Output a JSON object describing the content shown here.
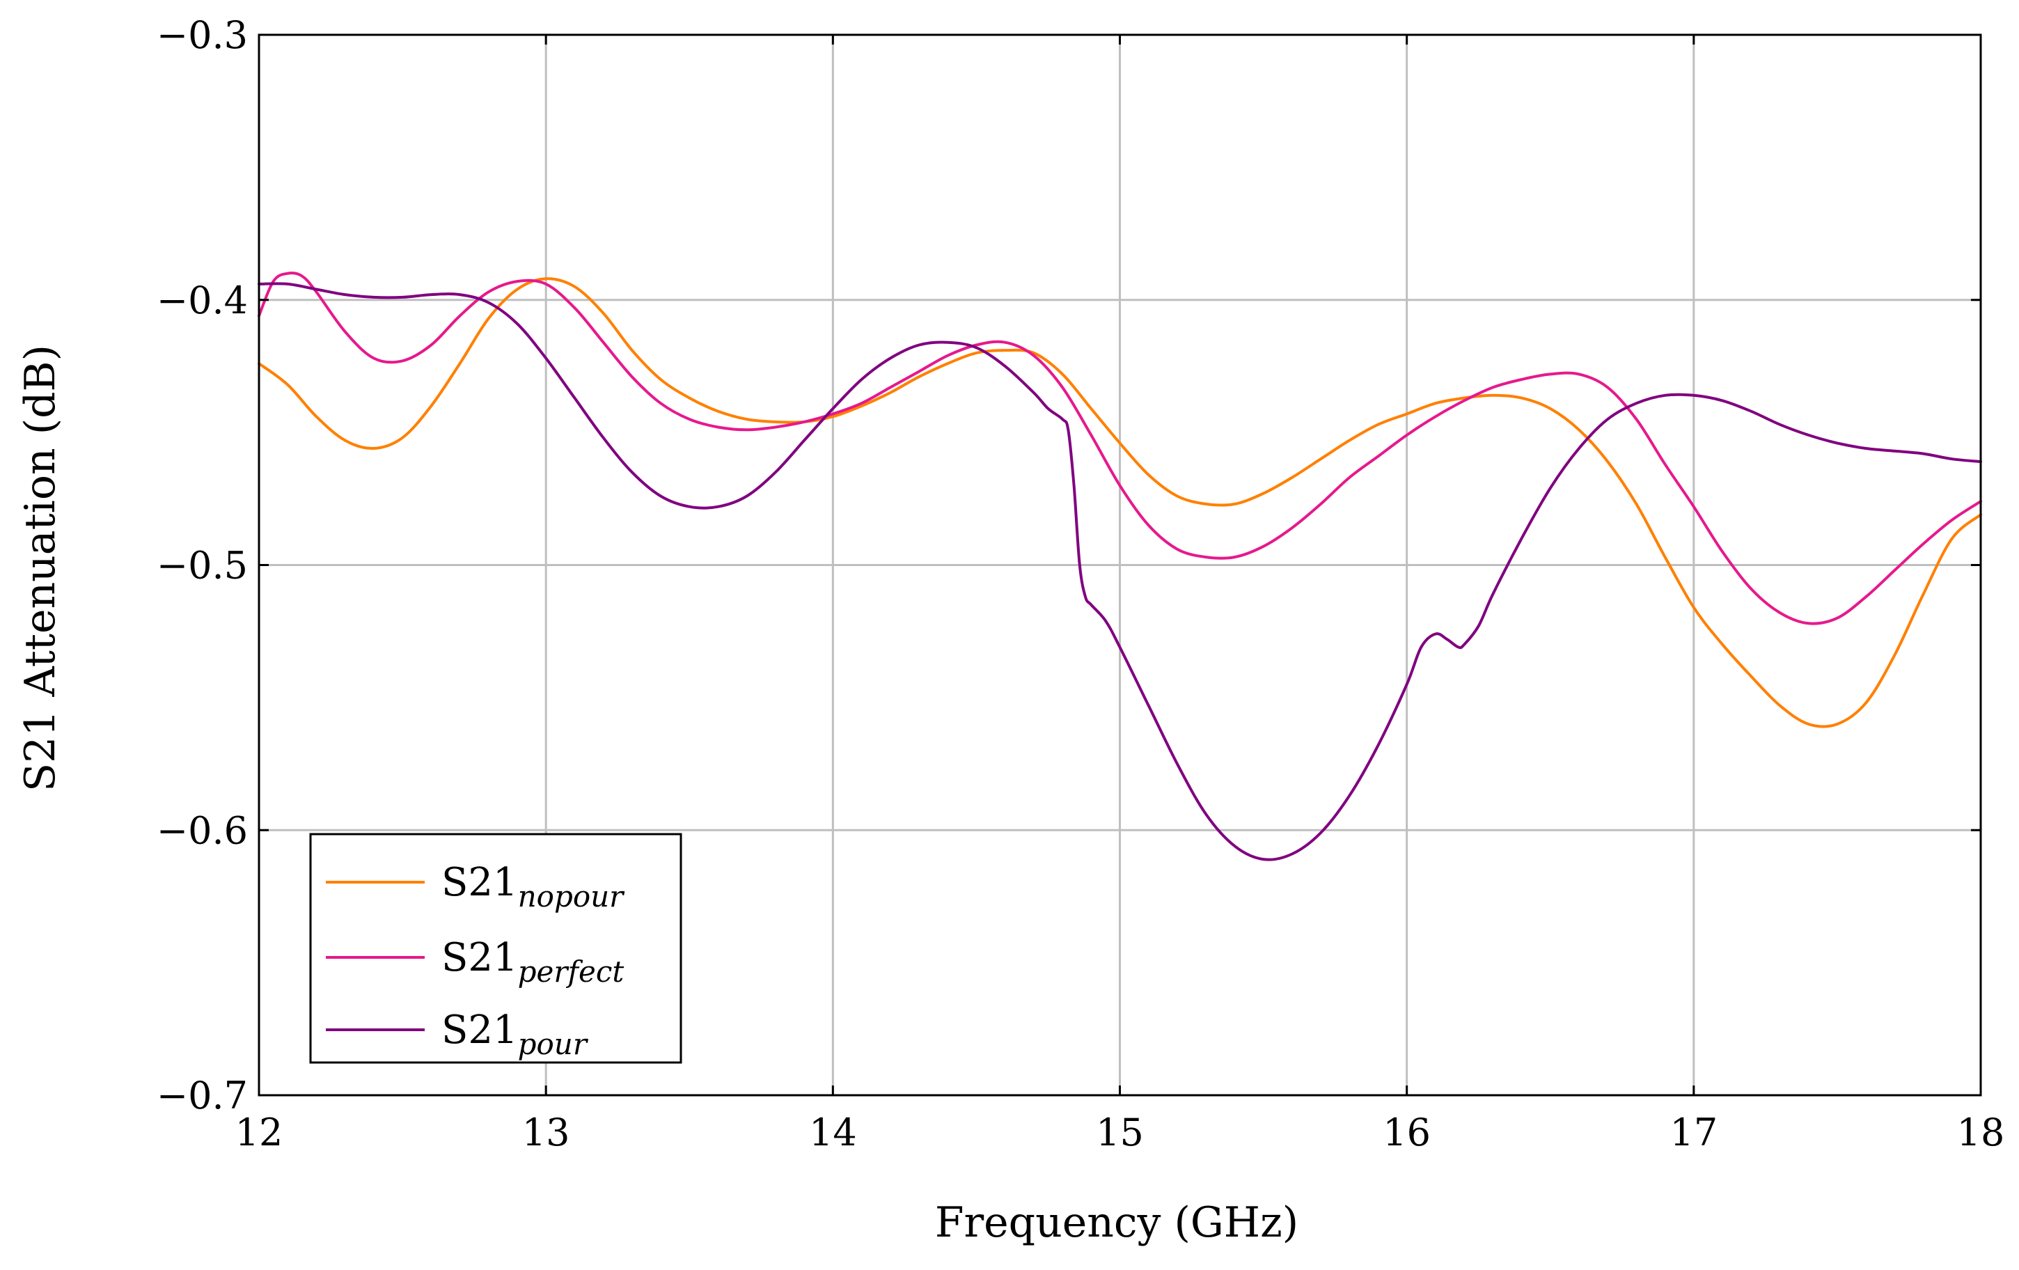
{
  "chart_data": {
    "type": "line",
    "title": "",
    "xlabel": "Frequency (GHz)",
    "ylabel": "S21 Attenuation (dB)",
    "xlim": [
      12,
      18
    ],
    "ylim": [
      -0.7,
      -0.3
    ],
    "xticks": [
      12,
      13,
      14,
      15,
      16,
      17,
      18
    ],
    "yticks": [
      -0.3,
      -0.4,
      -0.5,
      -0.6,
      -0.7
    ],
    "xtick_labels": [
      "12",
      "13",
      "14",
      "15",
      "16",
      "17",
      "18"
    ],
    "ytick_labels": [
      "−0.3",
      "−0.4",
      "−0.5",
      "−0.6",
      "−0.7"
    ],
    "grid": true,
    "legend_position": "bottom-left",
    "series": [
      {
        "name": "S21",
        "subscript": "nopour",
        "color": "#ff8000",
        "x": [
          12.0,
          12.1,
          12.2,
          12.3,
          12.4,
          12.5,
          12.6,
          12.7,
          12.8,
          12.9,
          13.0,
          13.1,
          13.2,
          13.3,
          13.4,
          13.5,
          13.6,
          13.7,
          13.8,
          13.9,
          14.0,
          14.1,
          14.2,
          14.3,
          14.4,
          14.5,
          14.6,
          14.7,
          14.8,
          14.9,
          15.0,
          15.1,
          15.2,
          15.3,
          15.4,
          15.5,
          15.6,
          15.7,
          15.8,
          15.9,
          16.0,
          16.1,
          16.2,
          16.3,
          16.4,
          16.5,
          16.6,
          16.7,
          16.8,
          16.9,
          17.0,
          17.1,
          17.2,
          17.3,
          17.4,
          17.5,
          17.6,
          17.7,
          17.8,
          17.9,
          18.0
        ],
        "y": [
          -0.424,
          -0.432,
          -0.444,
          -0.453,
          -0.456,
          -0.452,
          -0.44,
          -0.424,
          -0.407,
          -0.396,
          -0.392,
          -0.395,
          -0.405,
          -0.419,
          -0.43,
          -0.437,
          -0.442,
          -0.445,
          -0.446,
          -0.446,
          -0.444,
          -0.44,
          -0.435,
          -0.429,
          -0.424,
          -0.42,
          -0.419,
          -0.42,
          -0.428,
          -0.441,
          -0.454,
          -0.466,
          -0.474,
          -0.477,
          -0.477,
          -0.473,
          -0.467,
          -0.46,
          -0.453,
          -0.447,
          -0.443,
          -0.439,
          -0.437,
          -0.436,
          -0.437,
          -0.441,
          -0.449,
          -0.461,
          -0.477,
          -0.497,
          -0.516,
          -0.53,
          -0.542,
          -0.553,
          -0.56,
          -0.56,
          -0.552,
          -0.534,
          -0.511,
          -0.49,
          -0.481
        ]
      },
      {
        "name": "S21",
        "subscript": "perfect",
        "color": "#e6198c",
        "x": [
          12.0,
          12.05,
          12.1,
          12.15,
          12.2,
          12.3,
          12.4,
          12.5,
          12.6,
          12.7,
          12.8,
          12.9,
          13.0,
          13.1,
          13.2,
          13.3,
          13.4,
          13.5,
          13.6,
          13.7,
          13.8,
          13.9,
          14.0,
          14.1,
          14.2,
          14.3,
          14.4,
          14.5,
          14.6,
          14.7,
          14.8,
          14.9,
          15.0,
          15.1,
          15.2,
          15.3,
          15.4,
          15.5,
          15.6,
          15.7,
          15.8,
          15.9,
          16.0,
          16.1,
          16.2,
          16.3,
          16.4,
          16.5,
          16.6,
          16.7,
          16.8,
          16.9,
          17.0,
          17.1,
          17.2,
          17.3,
          17.4,
          17.5,
          17.6,
          17.7,
          17.8,
          17.9,
          18.0
        ],
        "y": [
          -0.406,
          -0.393,
          -0.39,
          -0.391,
          -0.397,
          -0.412,
          -0.422,
          -0.423,
          -0.417,
          -0.406,
          -0.397,
          -0.393,
          -0.394,
          -0.403,
          -0.416,
          -0.429,
          -0.439,
          -0.445,
          -0.448,
          -0.449,
          -0.448,
          -0.446,
          -0.443,
          -0.439,
          -0.433,
          -0.427,
          -0.421,
          -0.417,
          -0.416,
          -0.421,
          -0.433,
          -0.451,
          -0.47,
          -0.485,
          -0.494,
          -0.497,
          -0.497,
          -0.493,
          -0.486,
          -0.477,
          -0.467,
          -0.459,
          -0.451,
          -0.444,
          -0.438,
          -0.433,
          -0.43,
          -0.428,
          -0.428,
          -0.433,
          -0.445,
          -0.462,
          -0.478,
          -0.495,
          -0.509,
          -0.518,
          -0.522,
          -0.52,
          -0.512,
          -0.502,
          -0.492,
          -0.483,
          -0.476
        ]
      },
      {
        "name": "S21",
        "subscript": "pour",
        "color": "#800080",
        "x": [
          12.0,
          12.1,
          12.2,
          12.3,
          12.4,
          12.5,
          12.6,
          12.7,
          12.8,
          12.9,
          13.0,
          13.1,
          13.2,
          13.3,
          13.4,
          13.5,
          13.6,
          13.7,
          13.8,
          13.9,
          14.0,
          14.1,
          14.2,
          14.3,
          14.4,
          14.5,
          14.6,
          14.7,
          14.75,
          14.8,
          14.82,
          14.84,
          14.86,
          14.88,
          14.9,
          14.95,
          15.0,
          15.1,
          15.2,
          15.3,
          15.4,
          15.5,
          15.6,
          15.7,
          15.8,
          15.9,
          16.0,
          16.05,
          16.1,
          16.14,
          16.18,
          16.2,
          16.25,
          16.3,
          16.4,
          16.5,
          16.6,
          16.7,
          16.8,
          16.9,
          17.0,
          17.1,
          17.2,
          17.3,
          17.4,
          17.5,
          17.6,
          17.7,
          17.8,
          17.9,
          18.0
        ],
        "y": [
          -0.394,
          -0.394,
          -0.396,
          -0.398,
          -0.399,
          -0.399,
          -0.398,
          -0.398,
          -0.401,
          -0.409,
          -0.422,
          -0.437,
          -0.452,
          -0.465,
          -0.474,
          -0.478,
          -0.478,
          -0.474,
          -0.465,
          -0.453,
          -0.441,
          -0.43,
          -0.422,
          -0.417,
          -0.416,
          -0.418,
          -0.425,
          -0.435,
          -0.441,
          -0.445,
          -0.449,
          -0.47,
          -0.5,
          -0.512,
          -0.515,
          -0.521,
          -0.531,
          -0.553,
          -0.575,
          -0.594,
          -0.606,
          -0.611,
          -0.609,
          -0.601,
          -0.587,
          -0.568,
          -0.545,
          -0.531,
          -0.526,
          -0.528,
          -0.531,
          -0.53,
          -0.523,
          -0.511,
          -0.49,
          -0.471,
          -0.456,
          -0.445,
          -0.439,
          -0.436,
          -0.436,
          -0.438,
          -0.442,
          -0.447,
          -0.451,
          -0.454,
          -0.456,
          -0.457,
          -0.458,
          -0.46,
          -0.461
        ]
      }
    ]
  }
}
